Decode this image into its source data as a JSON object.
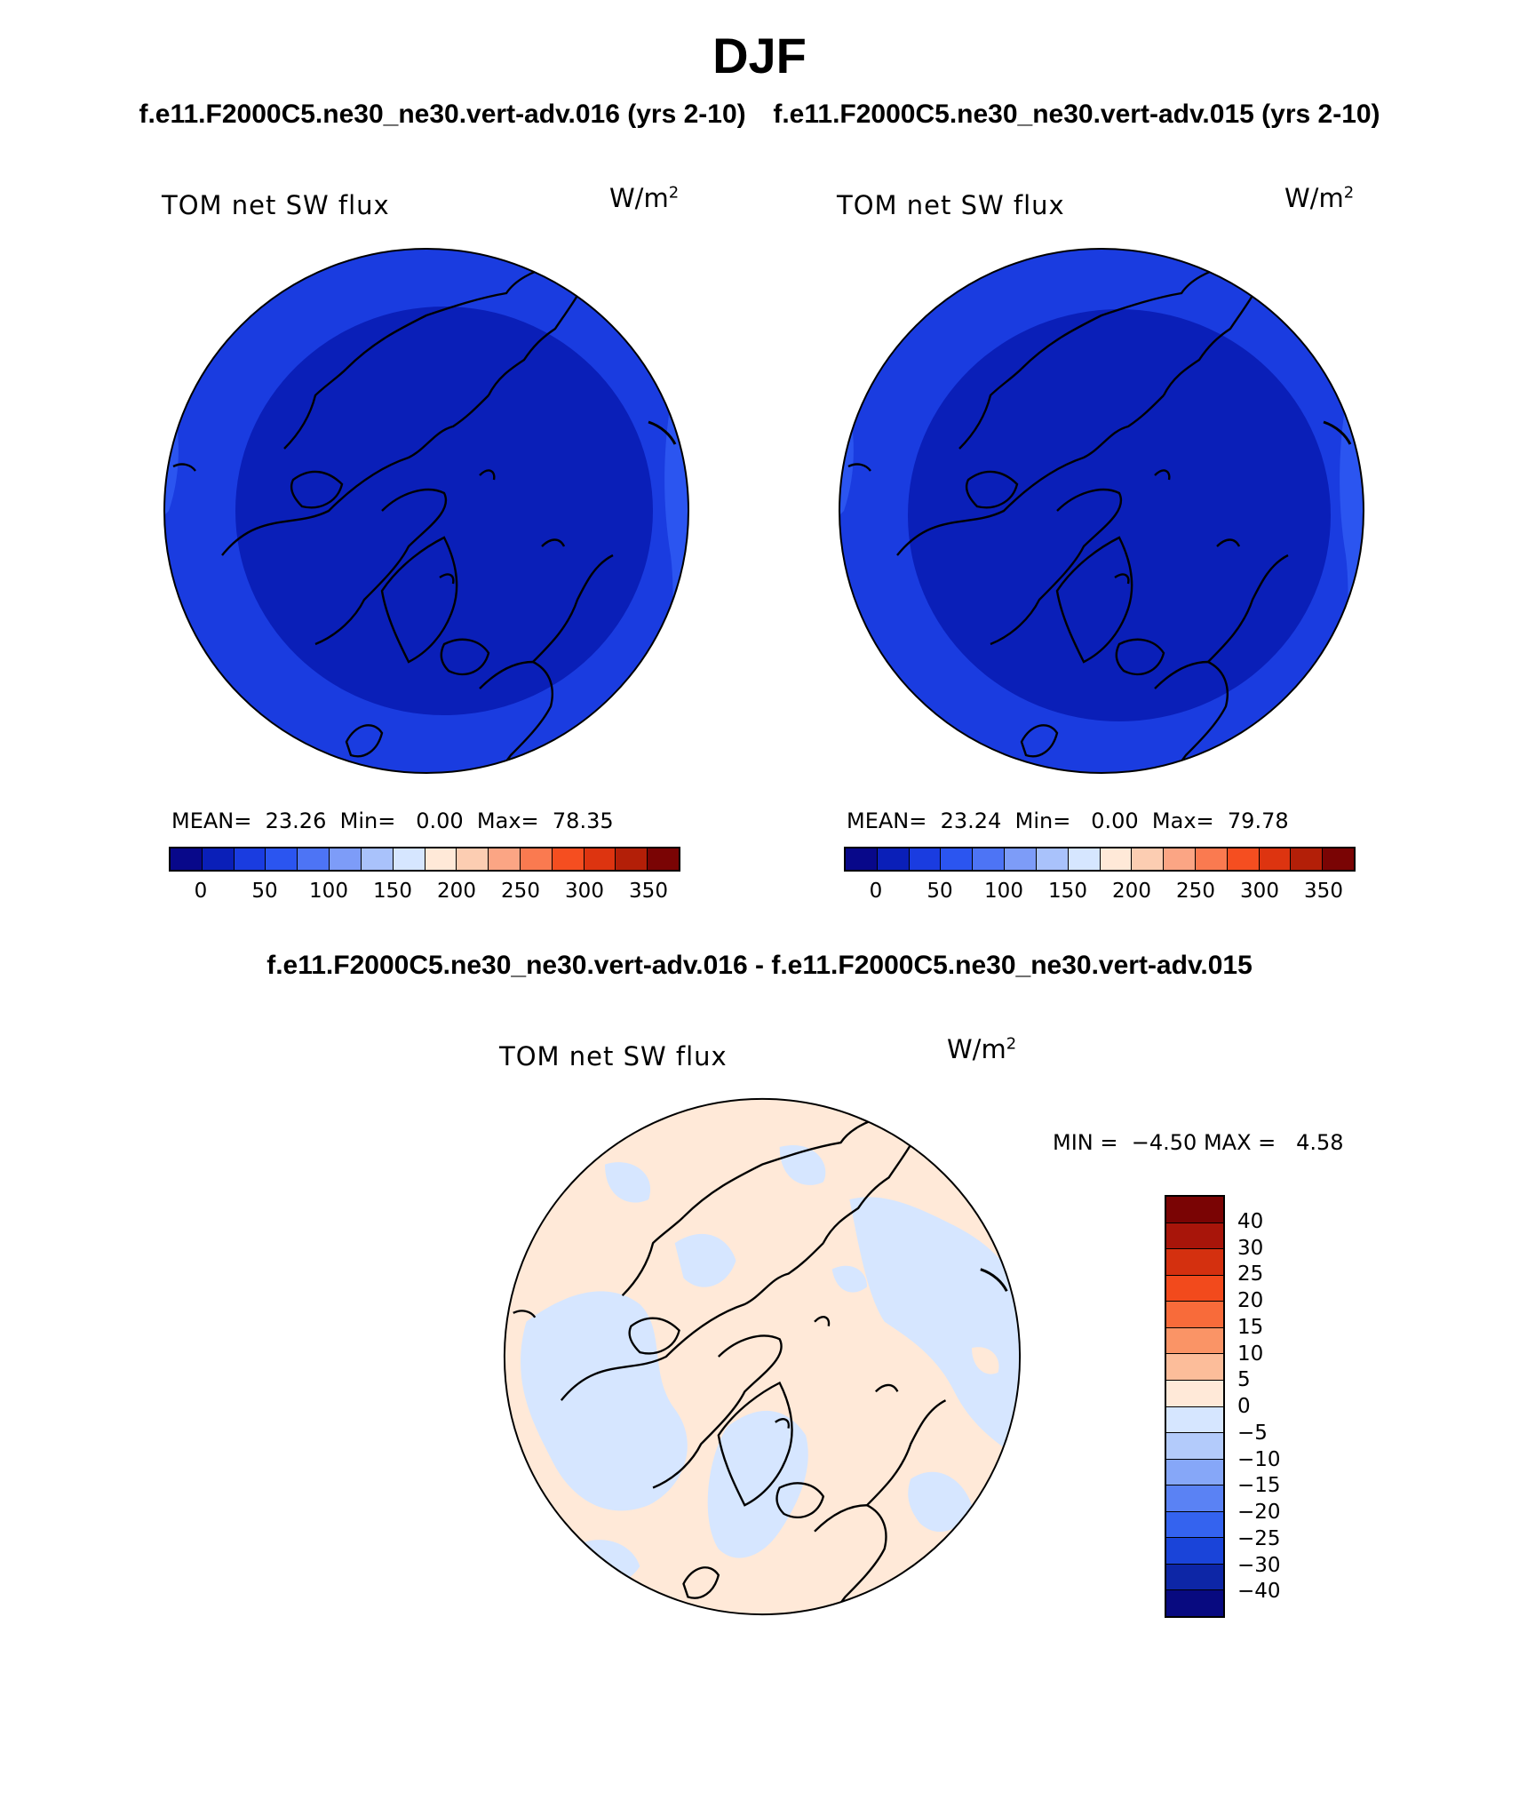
{
  "title": "DJF",
  "panels": {
    "left_title": "f.e11.F2000C5.ne30_ne30.vert-adv.016 (yrs 2-10)",
    "right_title": "f.e11.F2000C5.ne30_ne30.vert-adv.015 (yrs 2-10)",
    "diff_title": "f.e11.F2000C5.ne30_ne30.vert-adv.016 - f.e11.F2000C5.ne30_ne30.vert-adv.015"
  },
  "chart_data": [
    {
      "type": "heatmap",
      "projection": "north-polar-stereographic",
      "title": "f.e11.F2000C5.ne30_ne30.vert-adv.016 (yrs 2-10)",
      "variable": "TOM net SW flux",
      "units": "W/m",
      "units_exp": "2",
      "stats": {
        "mean_label": "MEAN=",
        "mean": "23.26",
        "min_label": "Min=",
        "min": "0.00",
        "max_label": "Max=",
        "max": "78.35"
      },
      "colorbar": {
        "labels": [
          "0",
          "50",
          "100",
          "150",
          "200",
          "250",
          "300",
          "350"
        ],
        "colors": [
          "#08088a",
          "#0a1fb8",
          "#1a3ce0",
          "#2b55f0",
          "#4d74f5",
          "#7d9cf8",
          "#a9c2fb",
          "#d6e6ff",
          "#ffe9d8",
          "#fccdb2",
          "#fba584",
          "#fa7a50",
          "#f54e20",
          "#dd3410",
          "#b31f08",
          "#7a0404"
        ]
      },
      "field_levels_shown": {
        "center": "0-25",
        "ring": "25-50",
        "outer_band": "50-75"
      }
    },
    {
      "type": "heatmap",
      "projection": "north-polar-stereographic",
      "title": "f.e11.F2000C5.ne30_ne30.vert-adv.015 (yrs 2-10)",
      "variable": "TOM net SW flux",
      "units": "W/m",
      "units_exp": "2",
      "stats": {
        "mean_label": "MEAN=",
        "mean": "23.24",
        "min_label": "Min=",
        "min": "0.00",
        "max_label": "Max=",
        "max": "79.78"
      },
      "colorbar": {
        "labels": [
          "0",
          "50",
          "100",
          "150",
          "200",
          "250",
          "300",
          "350"
        ],
        "colors": [
          "#08088a",
          "#0a1fb8",
          "#1a3ce0",
          "#2b55f0",
          "#4d74f5",
          "#7d9cf8",
          "#a9c2fb",
          "#d6e6ff",
          "#ffe9d8",
          "#fccdb2",
          "#fba584",
          "#fa7a50",
          "#f54e20",
          "#dd3410",
          "#b31f08",
          "#7a0404"
        ]
      },
      "field_levels_shown": {
        "center": "0-25",
        "ring": "25-50",
        "outer_band": "50-75"
      }
    },
    {
      "type": "heatmap",
      "projection": "north-polar-stereographic",
      "title": "f.e11.F2000C5.ne30_ne30.vert-adv.016 - f.e11.F2000C5.ne30_ne30.vert-adv.015",
      "variable": "TOM net SW flux",
      "units": "W/m",
      "units_exp": "2",
      "stats": {
        "min_label": "MIN =",
        "min": "-4.50",
        "max_label": "MAX =",
        "max": "4.58"
      },
      "colorbar": {
        "labels": [
          "40",
          "30",
          "25",
          "20",
          "15",
          "10",
          "5",
          "0",
          "-5",
          "-10",
          "-15",
          "-20",
          "-25",
          "-30",
          "-40"
        ],
        "colors": [
          "#7a0404",
          "#a8150a",
          "#d4300f",
          "#f24a1c",
          "#f86b3a",
          "#fa9466",
          "#fcbd9a",
          "#ffe9d8",
          "#d6e6ff",
          "#b3cbfb",
          "#86a7f8",
          "#5a82f4",
          "#3463ef",
          "#1a44d9",
          "#0d26a6",
          "#080a80"
        ]
      },
      "field_levels_shown": {
        "positive": "0 to 5",
        "negative": "-5 to 0"
      }
    }
  ]
}
